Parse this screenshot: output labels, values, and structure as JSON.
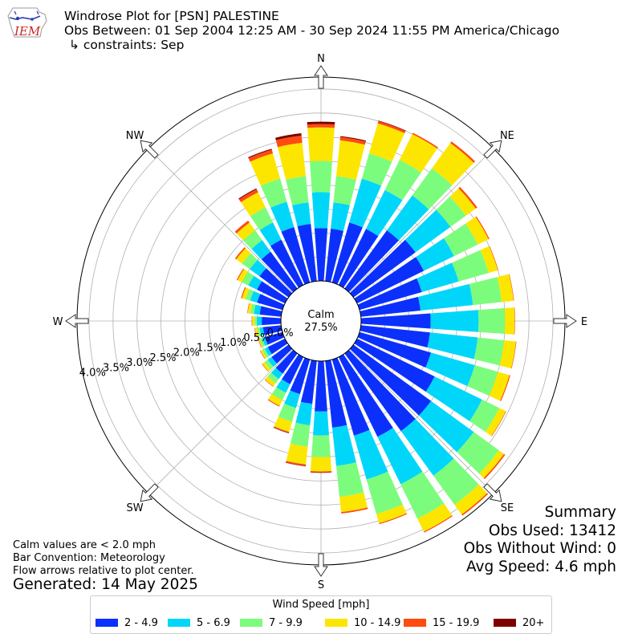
{
  "header": {
    "title": "Windrose Plot for [PSN] PALESTINE",
    "subtitle": "Obs Between: 01 Sep 2004 12:25 AM - 30 Sep 2024 11:55 PM America/Chicago",
    "constraint": "↳ constraints: Sep",
    "logo_text": "IEM"
  },
  "summary": {
    "heading": "Summary",
    "obs_used": "Obs Used: 13412",
    "obs_without_wind": "Obs Without Wind: 0",
    "avg_speed": "Avg Speed: 4.6 mph"
  },
  "notes": {
    "calm": "Calm values are < 2.0 mph",
    "convention": "Bar Convention: Meteorology",
    "flow": "Flow arrows relative to plot center.",
    "generated": "Generated: 14 May 2025"
  },
  "chart_data": {
    "type": "windrose",
    "calm_label": "Calm",
    "calm_value": "27.5%",
    "calm_percent": 27.5,
    "radial_ticks": [
      "0.0%",
      "0.5%",
      "1.0%",
      "1.5%",
      "2.0%",
      "2.5%",
      "3.0%",
      "3.5%",
      "4.0%"
    ],
    "radial_max": 4.25,
    "direction_labels": [
      "N",
      "NE",
      "E",
      "SE",
      "S",
      "SW",
      "W",
      "NW"
    ],
    "legend_title": "Wind Speed [mph]",
    "speed_bins": [
      {
        "label": "2 - 4.9",
        "color": "#0c30fc"
      },
      {
        "label": "5 - 6.9",
        "color": "#00d6fa"
      },
      {
        "label": "7 - 9.9",
        "color": "#7cfc7c"
      },
      {
        "label": "10 - 14.9",
        "color": "#fce600"
      },
      {
        "label": "15 - 19.9",
        "color": "#ff4a10"
      },
      {
        "label": "20+",
        "color": "#7d0000"
      }
    ],
    "directions_deg": [
      0,
      10,
      20,
      30,
      40,
      50,
      60,
      70,
      80,
      90,
      100,
      110,
      120,
      130,
      140,
      150,
      160,
      170,
      180,
      190,
      200,
      210,
      220,
      230,
      240,
      250,
      260,
      270,
      280,
      290,
      300,
      310,
      320,
      330,
      340,
      350
    ],
    "cumulative_percent": [
      [
        1.1,
        1.85,
        2.5,
        3.2,
        3.27,
        3.32
      ],
      [
        1.1,
        1.65,
        2.2,
        2.95,
        3.02,
        3.04
      ],
      [
        1.3,
        2.25,
        2.8,
        3.45,
        3.5,
        3.51
      ],
      [
        1.3,
        2.2,
        2.9,
        3.5,
        3.53,
        3.53
      ],
      [
        1.5,
        2.4,
        3.1,
        3.75,
        3.79,
        3.79
      ],
      [
        1.6,
        2.5,
        2.9,
        3.15,
        3.19,
        3.19
      ],
      [
        1.55,
        2.25,
        2.8,
        3.05,
        3.07,
        3.07
      ],
      [
        1.35,
        2.15,
        2.8,
        3.0,
        3.01,
        3.01
      ],
      [
        1.25,
        2.35,
        2.95,
        3.2,
        3.21,
        3.21
      ],
      [
        1.45,
        2.45,
        3.0,
        3.2,
        3.21,
        3.21
      ],
      [
        1.45,
        2.45,
        3.0,
        3.25,
        3.26,
        3.26
      ],
      [
        1.55,
        2.5,
        3.0,
        3.25,
        3.27,
        3.27
      ],
      [
        1.8,
        2.9,
        3.3,
        3.45,
        3.46,
        3.46
      ],
      [
        2.0,
        3.1,
        3.75,
        3.88,
        3.91,
        3.91
      ],
      [
        2.0,
        3.15,
        3.9,
        4.15,
        4.18,
        4.18
      ],
      [
        1.85,
        2.95,
        3.75,
        4.05,
        4.07,
        4.07
      ],
      [
        1.65,
        2.6,
        3.35,
        3.55,
        3.57,
        3.57
      ],
      [
        1.4,
        2.2,
        2.85,
        3.17,
        3.2,
        3.2
      ],
      [
        1.05,
        1.55,
        2.0,
        2.3,
        2.32,
        2.33
      ],
      [
        0.9,
        1.35,
        1.8,
        2.17,
        2.2,
        2.21
      ],
      [
        0.75,
        1.05,
        1.35,
        1.57,
        1.59,
        1.6
      ],
      [
        0.63,
        0.83,
        1.0,
        1.13,
        1.15,
        1.15
      ],
      [
        0.52,
        0.66,
        0.77,
        0.85,
        0.86,
        0.86
      ],
      [
        0.44,
        0.54,
        0.62,
        0.68,
        0.69,
        0.69
      ],
      [
        0.4,
        0.47,
        0.53,
        0.57,
        0.58,
        0.58
      ],
      [
        0.38,
        0.44,
        0.49,
        0.52,
        0.53,
        0.53
      ],
      [
        0.38,
        0.45,
        0.5,
        0.55,
        0.56,
        0.56
      ],
      [
        0.4,
        0.5,
        0.55,
        0.6,
        0.61,
        0.61
      ],
      [
        0.45,
        0.57,
        0.64,
        0.7,
        0.71,
        0.71
      ],
      [
        0.55,
        0.7,
        0.8,
        0.88,
        0.9,
        0.9
      ],
      [
        0.65,
        0.85,
        1.0,
        1.1,
        1.12,
        1.12
      ],
      [
        0.75,
        1.0,
        1.2,
        1.35,
        1.38,
        1.38
      ],
      [
        0.95,
        1.25,
        1.5,
        1.7,
        1.75,
        1.75
      ],
      [
        1.05,
        1.45,
        1.8,
        2.15,
        2.22,
        2.24
      ],
      [
        1.2,
        1.75,
        2.25,
        2.8,
        2.88,
        2.9
      ],
      [
        1.2,
        1.65,
        2.2,
        2.9,
        3.05,
        3.1
      ]
    ]
  }
}
